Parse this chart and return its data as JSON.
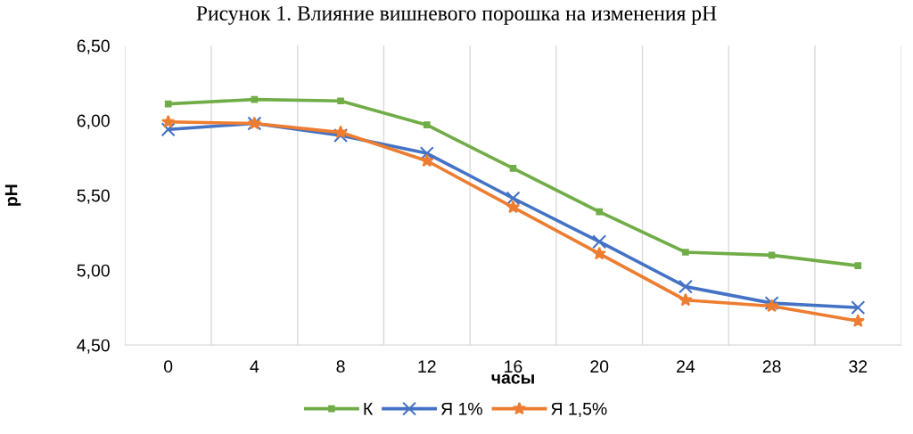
{
  "chart_data": {
    "type": "line",
    "title": "Рисунок 1. Влияние вишневого порошка на изменения pH",
    "xlabel": "часы",
    "ylabel": "pH",
    "categories": [
      "0",
      "4",
      "8",
      "12",
      "16",
      "20",
      "24",
      "28",
      "32"
    ],
    "series": [
      {
        "name": "К",
        "color": "#70ad47",
        "marker": "square",
        "values": [
          6.11,
          6.14,
          6.13,
          5.97,
          5.68,
          5.39,
          5.12,
          5.1,
          5.03
        ]
      },
      {
        "name": "Я 1%",
        "color": "#4472c4",
        "marker": "cross",
        "values": [
          5.94,
          5.98,
          5.9,
          5.78,
          5.48,
          5.19,
          4.89,
          4.78,
          4.75
        ]
      },
      {
        "name": "Я 1,5%",
        "color": "#ed7d31",
        "marker": "star",
        "values": [
          5.99,
          5.98,
          5.92,
          5.73,
          5.42,
          5.11,
          4.8,
          4.76,
          4.66
        ]
      }
    ],
    "ylim": [
      4.5,
      6.5
    ],
    "yticks": [
      {
        "value": 4.5,
        "label": "4,50"
      },
      {
        "value": 5.0,
        "label": "5,00"
      },
      {
        "value": 5.5,
        "label": "5,50"
      },
      {
        "value": 6.0,
        "label": "6,00"
      },
      {
        "value": 6.5,
        "label": "6,50"
      }
    ],
    "grid": "x",
    "legend": "bottom",
    "line_style": "solid"
  }
}
